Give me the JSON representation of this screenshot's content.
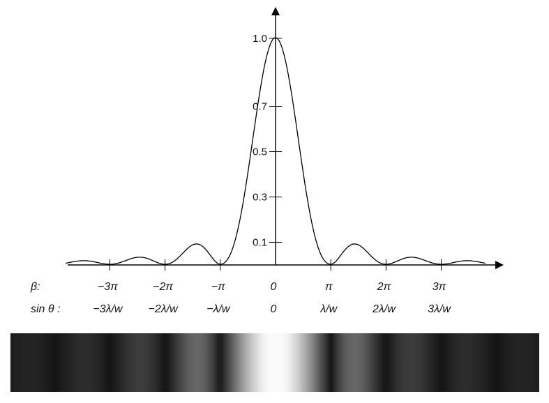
{
  "chart_data": {
    "type": "line",
    "curve": "sinc^2 single-slit diffraction intensity",
    "x_param": "beta",
    "xlim_beta_multiples_of_pi": [
      -3.8,
      3.8
    ],
    "ylim": [
      0,
      1.0
    ],
    "y_ticks": [
      {
        "value": 0.1,
        "label": "0.1"
      },
      {
        "value": 0.3,
        "label": "0.3"
      },
      {
        "value": 0.5,
        "label": "0.5"
      },
      {
        "value": 0.7,
        "label": "0.7"
      },
      {
        "value": 1.0,
        "label": "1.0"
      }
    ],
    "x_ticks_beta_multiples_of_pi": [
      -3,
      -2,
      -1,
      0,
      1,
      2,
      3
    ],
    "row_labels": {
      "beta": "β:",
      "sin_theta": "sin θ :"
    },
    "beta_labels": [
      "−3π",
      "−2π",
      "−π",
      "0",
      "π",
      "2π",
      "3π"
    ],
    "sin_theta_labels": [
      "−3λ/w",
      "−2λ/w",
      "−λ/w",
      "0",
      "λ/w",
      "2λ/w",
      "3λ/w"
    ],
    "fringe_strip": {
      "description_type": "grayscale intensity pattern",
      "background": "#141414"
    }
  }
}
